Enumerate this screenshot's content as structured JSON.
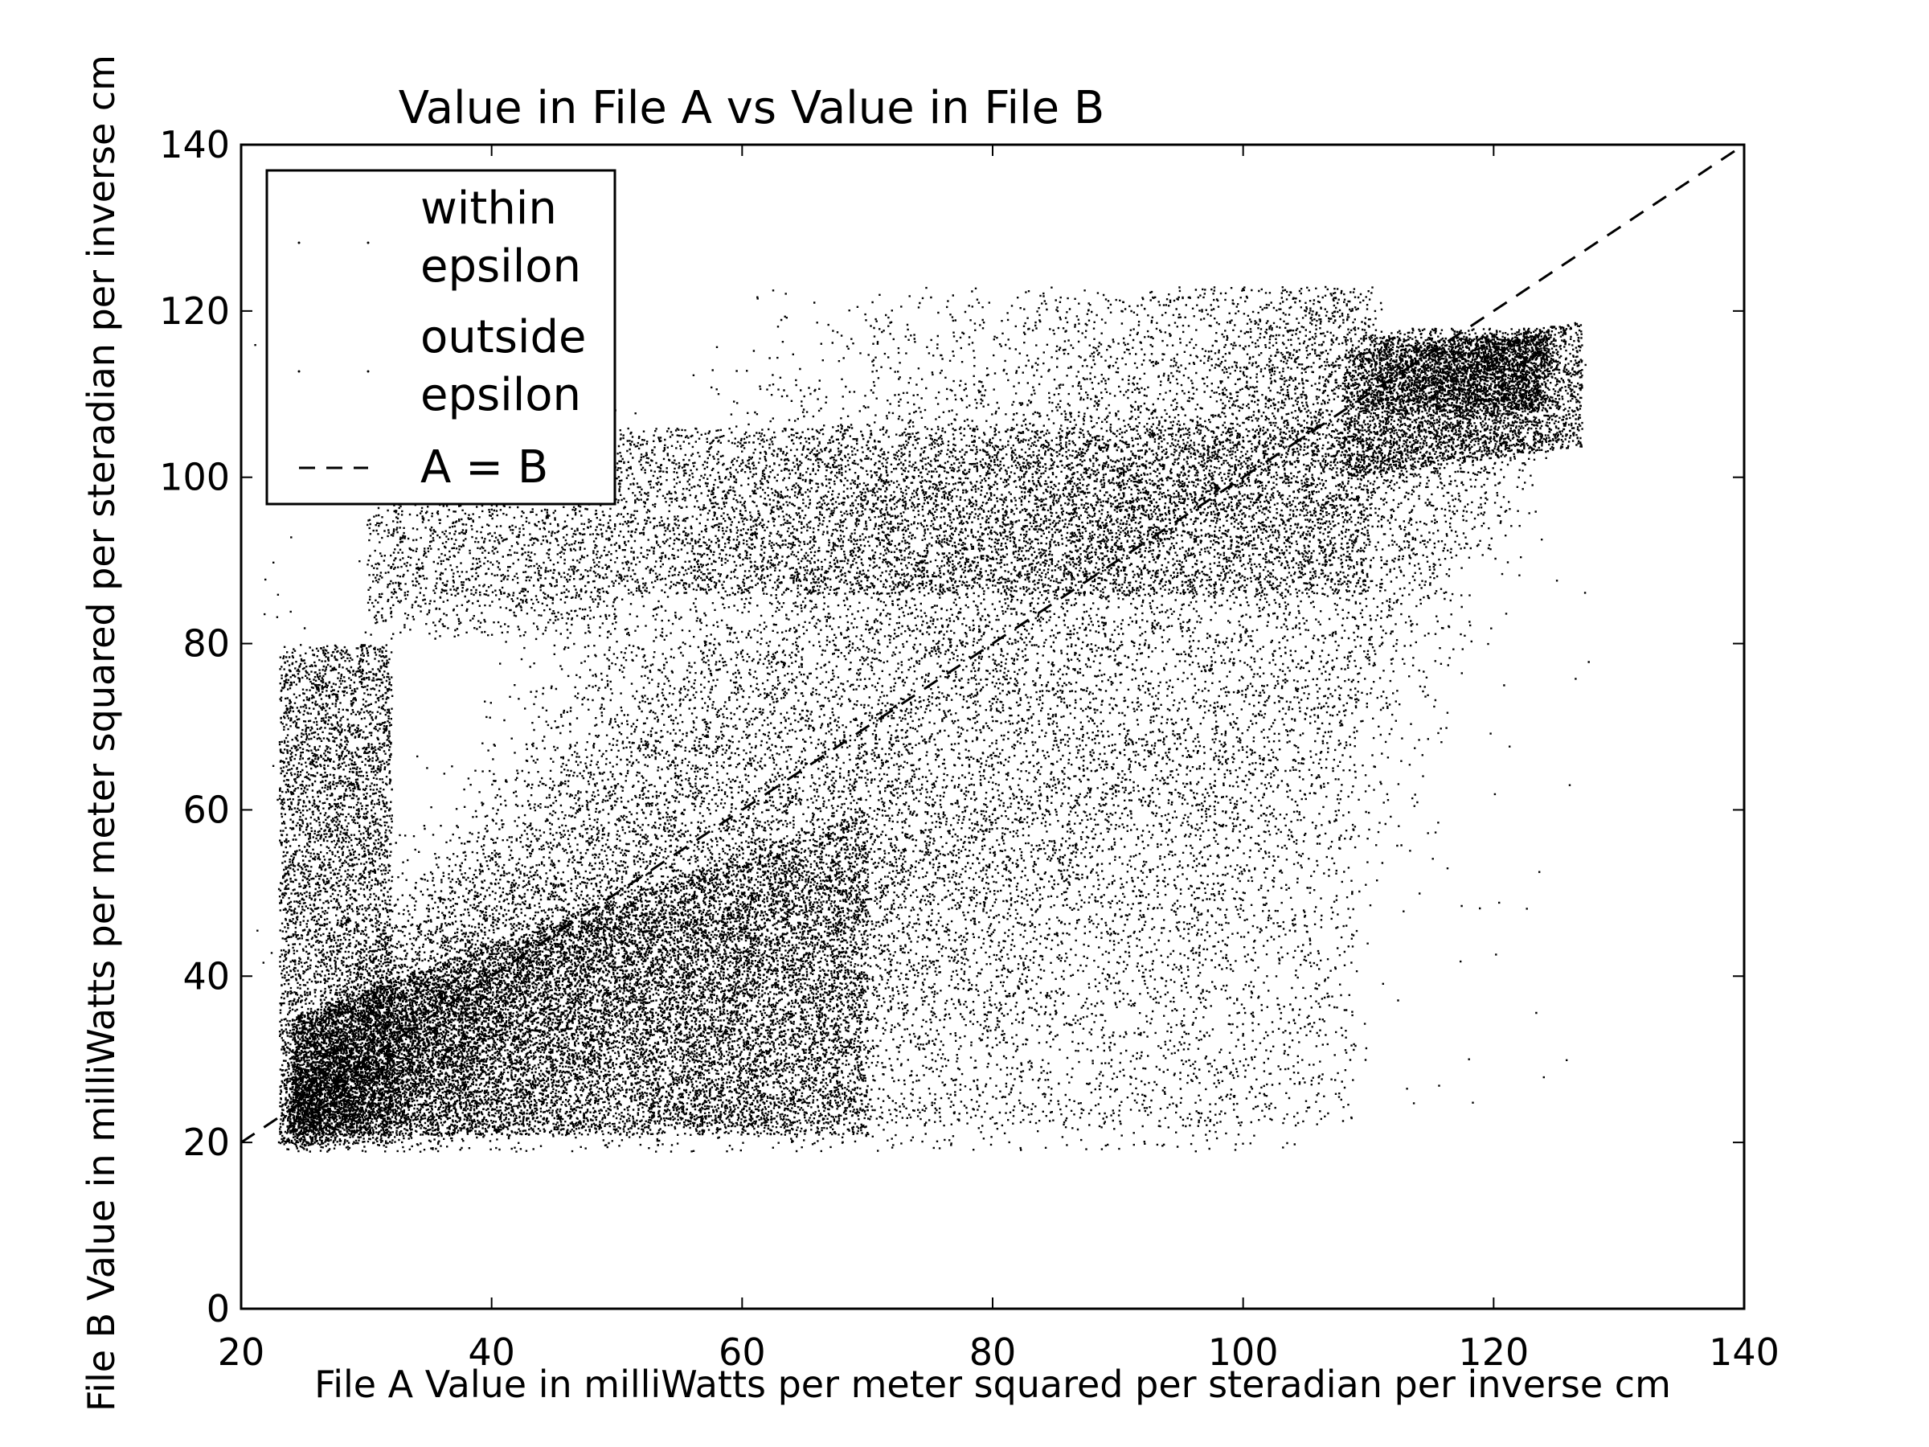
{
  "chart_data": {
    "type": "scatter",
    "title": "Value in File A vs Value in File B",
    "xlabel": "File A Value in milliWatts per meter squared per steradian per inverse cm",
    "ylabel": "File B Value in milliWatts per meter squared per steradian per inverse cm",
    "xlim": [
      20,
      140
    ],
    "ylim": [
      0,
      140
    ],
    "xticks": [
      "20",
      "40",
      "60",
      "80",
      "100",
      "120",
      "140"
    ],
    "yticks": [
      "0",
      "20",
      "40",
      "60",
      "80",
      "100",
      "120",
      "140"
    ],
    "grid": false,
    "legend": {
      "placement": "top-left",
      "entries": [
        {
          "label_line1": "within",
          "label_line2": "epsilon",
          "marker": "dot"
        },
        {
          "label_line1": "outside",
          "label_line2": "epsilon",
          "marker": "dot"
        },
        {
          "label_line1": "A = B",
          "label_line2": "",
          "marker": "dashed-line"
        }
      ]
    },
    "series": [
      {
        "name": "within epsilon",
        "style": "dots",
        "color": "#000000",
        "note_density_regions": [
          {
            "x": [
              25,
              60
            ],
            "y": [
              20,
              60
            ]
          },
          {
            "x": [
              40,
              100
            ],
            "y": [
              40,
              100
            ]
          },
          {
            "x": [
              90,
              125
            ],
            "y": [
              85,
              118
            ]
          }
        ]
      },
      {
        "name": "outside epsilon",
        "style": "dots",
        "color": "#000000"
      },
      {
        "name": "A = B",
        "style": "dashed-line",
        "color": "#000000",
        "x": [
          20,
          140
        ],
        "y": [
          20,
          140
        ]
      }
    ]
  }
}
